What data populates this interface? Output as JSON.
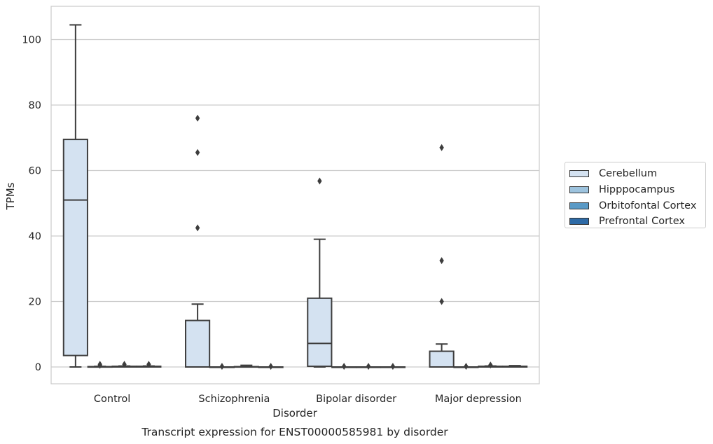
{
  "chart_data": {
    "type": "box",
    "title": "Transcript expression for ENST00000585981 by disorder",
    "xlabel": "Disorder",
    "ylabel": "TPMs",
    "ylim": [
      -5,
      110
    ],
    "yticks": [
      0,
      20,
      40,
      60,
      80,
      100
    ],
    "grid": true,
    "legend_position": "right",
    "categories": [
      "Control",
      "Schizophrenia",
      "Bipolar disorder",
      "Major depression"
    ],
    "series": [
      {
        "name": "Cerebellum",
        "color": "#d4e2f1",
        "boxes": [
          {
            "whislo": 0,
            "q1": 3.5,
            "median": 51,
            "q3": 69.5,
            "whishi": 104.5,
            "fliers": []
          },
          {
            "whislo": 0,
            "q1": 0,
            "median": 0,
            "q3": 14.2,
            "whishi": 19.2,
            "fliers": [
              42.5,
              65.5,
              76
            ]
          },
          {
            "whislo": 0,
            "q1": 0.2,
            "median": 7.2,
            "q3": 21,
            "whishi": 39,
            "fliers": [
              56.8
            ]
          },
          {
            "whislo": 0,
            "q1": 0,
            "median": 0,
            "q3": 4.8,
            "whishi": 7,
            "fliers": [
              20,
              32.5,
              67
            ]
          }
        ]
      },
      {
        "name": "Hipppocampus",
        "color": "#9dc3de",
        "boxes": [
          {
            "whislo": 0,
            "q1": 0,
            "median": 0,
            "q3": 0.1,
            "whishi": 0.2,
            "fliers": [
              0.5,
              0.8
            ]
          },
          {
            "whislo": 0,
            "q1": 0,
            "median": 0,
            "q3": 0,
            "whishi": 0,
            "fliers": [
              0.2
            ]
          },
          {
            "whislo": 0,
            "q1": 0,
            "median": 0,
            "q3": 0,
            "whishi": 0,
            "fliers": [
              0.2
            ]
          },
          {
            "whislo": 0,
            "q1": 0,
            "median": 0,
            "q3": 0,
            "whishi": 0,
            "fliers": [
              0.2
            ]
          }
        ]
      },
      {
        "name": "Orbitofontal Cortex",
        "color": "#5a9ac6",
        "boxes": [
          {
            "whislo": 0,
            "q1": 0,
            "median": 0,
            "q3": 0.2,
            "whishi": 0.3,
            "fliers": [
              0.8
            ]
          },
          {
            "whislo": 0,
            "q1": 0,
            "median": 0,
            "q3": 0.1,
            "whishi": 0.5,
            "fliers": []
          },
          {
            "whislo": 0,
            "q1": 0,
            "median": 0,
            "q3": 0,
            "whishi": 0,
            "fliers": [
              0.2
            ]
          },
          {
            "whislo": 0,
            "q1": 0,
            "median": 0,
            "q3": 0.2,
            "whishi": 0.3,
            "fliers": [
              0.6
            ]
          }
        ]
      },
      {
        "name": "Prefrontal Cortex",
        "color": "#2d6aa6",
        "boxes": [
          {
            "whislo": 0,
            "q1": 0,
            "median": 0,
            "q3": 0.2,
            "whishi": 0.3,
            "fliers": [
              0.8
            ]
          },
          {
            "whislo": 0,
            "q1": 0,
            "median": 0,
            "q3": 0,
            "whishi": 0,
            "fliers": [
              0.2
            ]
          },
          {
            "whislo": 0,
            "q1": 0,
            "median": 0,
            "q3": 0,
            "whishi": 0,
            "fliers": [
              0.2
            ]
          },
          {
            "whislo": 0,
            "q1": 0,
            "median": 0,
            "q3": 0.2,
            "whishi": 0.4,
            "fliers": []
          }
        ]
      }
    ]
  }
}
